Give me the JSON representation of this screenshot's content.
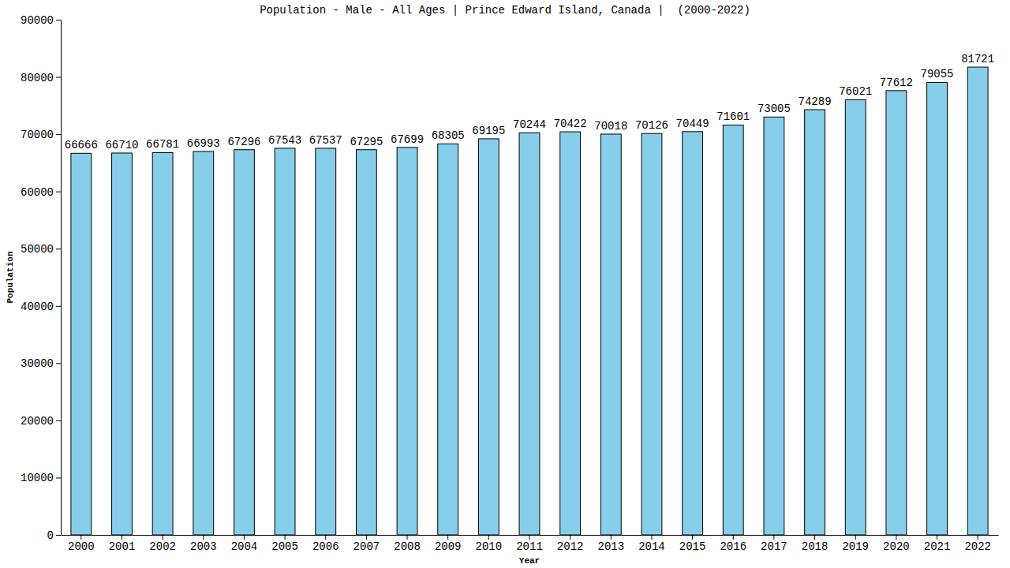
{
  "chart_data": {
    "type": "bar",
    "title": "Population - Male - All Ages | Prince Edward Island, Canada |  (2000-2022)",
    "x_label": "Year",
    "y_label": "Population",
    "categories": [
      "2000",
      "2001",
      "2002",
      "2003",
      "2004",
      "2005",
      "2006",
      "2007",
      "2008",
      "2009",
      "2010",
      "2011",
      "2012",
      "2013",
      "2014",
      "2015",
      "2016",
      "2017",
      "2018",
      "2019",
      "2020",
      "2021",
      "2022"
    ],
    "values": [
      66666,
      66710,
      66781,
      66993,
      67296,
      67543,
      67537,
      67295,
      67699,
      68305,
      69195,
      70244,
      70422,
      70018,
      70126,
      70449,
      71601,
      73005,
      74289,
      76021,
      77612,
      79055,
      81721
    ],
    "color": "#87ceeb",
    "ylim": [
      0,
      90000
    ],
    "yticks": [
      0,
      10000,
      20000,
      30000,
      40000,
      50000,
      60000,
      70000,
      80000,
      90000
    ],
    "grid": false,
    "data_labels": true
  }
}
